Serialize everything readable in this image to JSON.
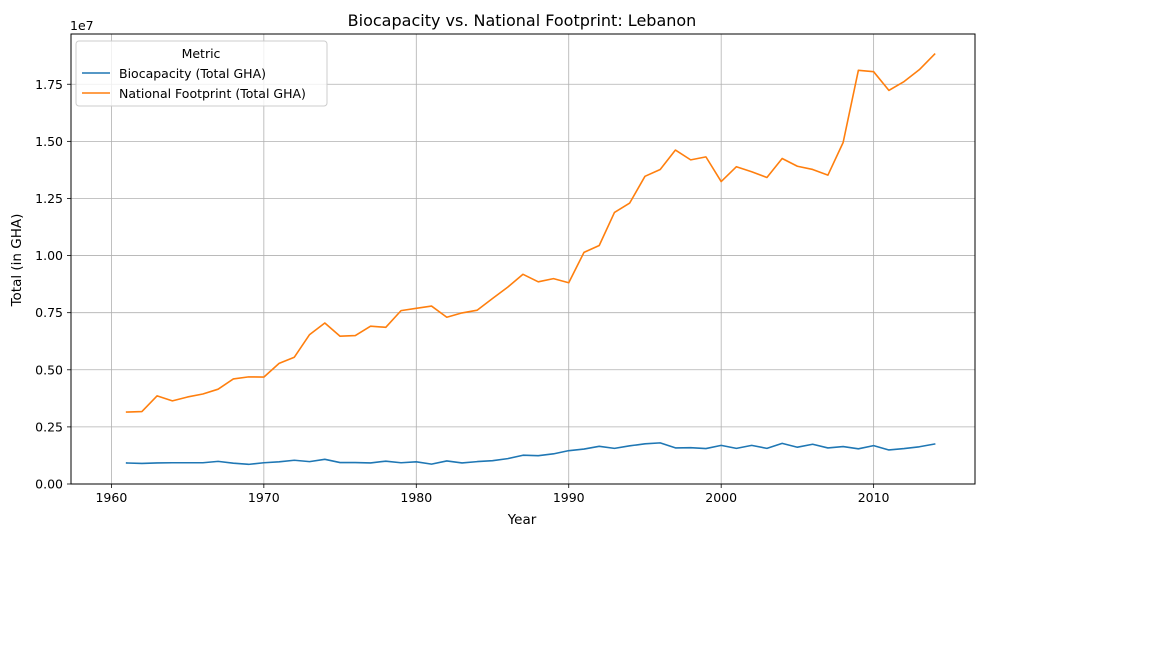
{
  "chart_data": {
    "type": "line",
    "title": "Biocapacity vs. National Footprint: Lebanon",
    "xlabel": "Year",
    "ylabel": "Total (in GHA)",
    "y_offset_text": "1e7",
    "xlim": [
      1957.35,
      2016.65
    ],
    "ylim": [
      0,
      19700000
    ],
    "xticks": [
      1960,
      1970,
      1980,
      1990,
      2000,
      2010
    ],
    "yticks": [
      0,
      2500000,
      5000000,
      7500000,
      10000000,
      12500000,
      15000000,
      17500000
    ],
    "ytick_labels": [
      "0.00",
      "0.25",
      "0.50",
      "0.75",
      "1.00",
      "1.25",
      "1.50",
      "1.75"
    ],
    "grid": true,
    "legend": {
      "title": "Metric",
      "placement": "top-left"
    },
    "x": [
      1961,
      1962,
      1963,
      1964,
      1965,
      1966,
      1967,
      1968,
      1969,
      1970,
      1971,
      1972,
      1973,
      1974,
      1975,
      1976,
      1977,
      1978,
      1979,
      1980,
      1981,
      1982,
      1983,
      1984,
      1985,
      1986,
      1987,
      1988,
      1989,
      1990,
      1991,
      1992,
      1993,
      1994,
      1995,
      1996,
      1997,
      1998,
      1999,
      2000,
      2001,
      2002,
      2003,
      2004,
      2005,
      2006,
      2007,
      2008,
      2009,
      2010,
      2011,
      2012,
      2013,
      2014
    ],
    "series": [
      {
        "name": "Biocapacity (Total GHA)",
        "color": "#1f77b4",
        "values": [
          920000,
          900000,
          920000,
          930000,
          930000,
          930000,
          990000,
          910000,
          860000,
          930000,
          970000,
          1040000,
          980000,
          1080000,
          940000,
          940000,
          920000,
          1000000,
          930000,
          970000,
          870000,
          1010000,
          920000,
          980000,
          1020000,
          1110000,
          1260000,
          1240000,
          1320000,
          1460000,
          1530000,
          1650000,
          1560000,
          1670000,
          1760000,
          1800000,
          1580000,
          1590000,
          1550000,
          1690000,
          1560000,
          1690000,
          1560000,
          1780000,
          1610000,
          1740000,
          1580000,
          1640000,
          1540000,
          1680000,
          1490000,
          1550000,
          1630000,
          1750000
        ]
      },
      {
        "name": "National Footprint (Total GHA)",
        "color": "#ff7f0e",
        "values": [
          3150000,
          3170000,
          3860000,
          3640000,
          3810000,
          3940000,
          4150000,
          4600000,
          4690000,
          4680000,
          5280000,
          5550000,
          6540000,
          7050000,
          6470000,
          6500000,
          6910000,
          6860000,
          7590000,
          7690000,
          7790000,
          7300000,
          7490000,
          7610000,
          8120000,
          8620000,
          9180000,
          8850000,
          8990000,
          8810000,
          10140000,
          10440000,
          11890000,
          12300000,
          13470000,
          13770000,
          14620000,
          14190000,
          14320000,
          13240000,
          13890000,
          13670000,
          13420000,
          14250000,
          13910000,
          13770000,
          13520000,
          14950000,
          18110000,
          18050000,
          17230000,
          17620000,
          18140000,
          18820000
        ]
      }
    ]
  }
}
